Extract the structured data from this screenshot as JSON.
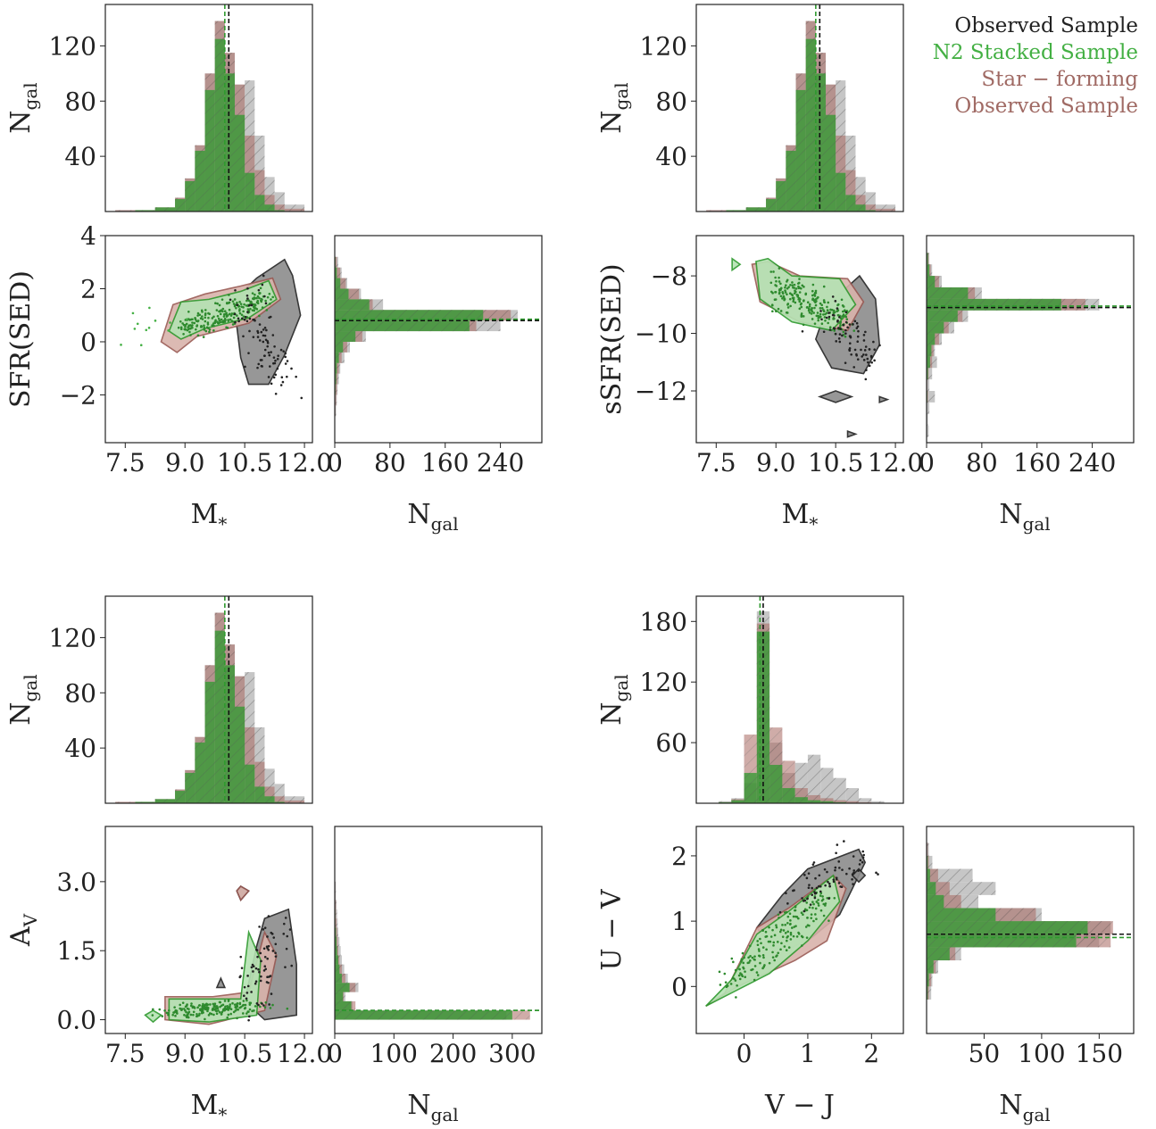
{
  "legend": [
    {
      "label": "Observed Sample",
      "color": "#222222"
    },
    {
      "label": "N2 Stacked Sample",
      "color": "#44b044"
    },
    {
      "label": "Star − forming",
      "color": "#a06a64"
    },
    {
      "label": "Observed Sample",
      "color": "#a06a64"
    }
  ],
  "colors": {
    "observed": "#9a9a9a",
    "stacked": "#2e9a2e",
    "starforming": "#a86860",
    "green_fill": "#b5e3b3",
    "pink_fill": "#d9b3ab",
    "gray_fill": "#8c8c8c"
  },
  "chart_data": [
    {
      "type": "histogram",
      "panel": "top-left-marginal",
      "ylabel": "N",
      "ylabel_sub": "gal",
      "xlim": [
        7.0,
        12.2
      ],
      "ylim": [
        0,
        150
      ],
      "yticks": [
        "40",
        "80",
        "120"
      ],
      "ytick_values": [
        40,
        80,
        120
      ],
      "bins": [
        7.25,
        7.75,
        8.25,
        8.75,
        9.0,
        9.25,
        9.5,
        9.75,
        10.0,
        10.25,
        10.5,
        10.75,
        11.0,
        11.25,
        11.5
      ],
      "observed": [
        1,
        1,
        3,
        10,
        24,
        48,
        100,
        138,
        115,
        92,
        95,
        55,
        25,
        14,
        5
      ],
      "starforming": [
        1,
        1,
        3,
        10,
        24,
        48,
        100,
        138,
        115,
        92,
        55,
        30,
        12,
        5,
        2
      ],
      "stacked": [
        0,
        1,
        3,
        9,
        22,
        44,
        88,
        125,
        100,
        70,
        28,
        12,
        5,
        1,
        0
      ],
      "median_observed": 10.1,
      "median_stacked": 10.0
    },
    {
      "type": "scatter",
      "panel": "SFR vs mass",
      "xlabel": "M",
      "xlabel_sub": "*",
      "ylabel": "SFR(SED)",
      "xlim": [
        7.0,
        12.2
      ],
      "ylim": [
        -3.8,
        4
      ],
      "xticks": [
        "7.5",
        "9.0",
        "10.5",
        "12.0"
      ],
      "xtick_values": [
        7.5,
        9.0,
        10.5,
        12.0
      ],
      "yticks": [
        "−2",
        "0",
        "2",
        "4"
      ],
      "ytick_values": [
        -2,
        0,
        2,
        4
      ]
    },
    {
      "type": "histogram",
      "orientation": "horizontal",
      "panel": "SFR marginal",
      "xlabel": "N",
      "xlabel_sub": "gal",
      "xlim": [
        0,
        300
      ],
      "ylim": [
        -3.8,
        4
      ],
      "xticks": [
        "0",
        "80",
        "160",
        "240"
      ],
      "xtick_values": [
        0,
        80,
        160,
        240
      ],
      "bins": [
        -2.6,
        -2.2,
        -1.8,
        -1.4,
        -1.0,
        -0.6,
        -0.2,
        0.2,
        0.6,
        1.0,
        1.4,
        1.8,
        2.2,
        2.6,
        3.0
      ],
      "observed": [
        2,
        3,
        4,
        6,
        8,
        14,
        22,
        45,
        240,
        265,
        70,
        38,
        18,
        10,
        5
      ],
      "starforming": [
        1,
        2,
        3,
        4,
        6,
        10,
        18,
        40,
        205,
        255,
        55,
        35,
        16,
        8,
        3
      ],
      "stacked": [
        0,
        0,
        1,
        2,
        3,
        6,
        12,
        30,
        195,
        215,
        50,
        20,
        8,
        3,
        1
      ],
      "median_observed": 0.8,
      "median_stacked": 0.85
    },
    {
      "type": "histogram",
      "panel": "top-right-marginal",
      "ylabel": "N",
      "ylabel_sub": "gal",
      "xlim": [
        7.0,
        12.2
      ],
      "ylim": [
        0,
        150
      ],
      "yticks": [
        "40",
        "80",
        "120"
      ],
      "ytick_values": [
        40,
        80,
        120
      ],
      "bins": [
        7.25,
        7.75,
        8.25,
        8.75,
        9.0,
        9.25,
        9.5,
        9.75,
        10.0,
        10.25,
        10.5,
        10.75,
        11.0,
        11.25,
        11.5
      ],
      "observed": [
        1,
        1,
        3,
        10,
        24,
        48,
        100,
        138,
        115,
        92,
        95,
        55,
        25,
        14,
        5
      ],
      "starforming": [
        1,
        1,
        3,
        10,
        24,
        48,
        100,
        138,
        115,
        92,
        55,
        30,
        12,
        5,
        2
      ],
      "stacked": [
        0,
        1,
        3,
        9,
        22,
        44,
        88,
        125,
        100,
        70,
        28,
        12,
        5,
        1,
        0
      ],
      "median_observed": 10.1,
      "median_stacked": 10.0
    },
    {
      "type": "scatter",
      "panel": "sSFR vs mass",
      "xlabel": "M",
      "xlabel_sub": "*",
      "ylabel": "sSFR(SED)",
      "xlim": [
        7.0,
        12.2
      ],
      "ylim": [
        -13.8,
        -6.6
      ],
      "xticks": [
        "7.5",
        "9.0",
        "10.5",
        "12.0"
      ],
      "xtick_values": [
        7.5,
        9.0,
        10.5,
        12.0
      ],
      "yticks": [
        "−12",
        "−10",
        "−8"
      ],
      "ytick_values": [
        -12,
        -10,
        -8
      ]
    },
    {
      "type": "histogram",
      "orientation": "horizontal",
      "panel": "sSFR marginal",
      "xlabel": "N",
      "xlabel_sub": "gal",
      "xlim": [
        0,
        300
      ],
      "ylim": [
        -13.8,
        -6.6
      ],
      "xticks": [
        "0",
        "80",
        "160",
        "240"
      ],
      "xtick_values": [
        0,
        80,
        160,
        240
      ],
      "bins": [
        -13.4,
        -13.0,
        -12.6,
        -12.2,
        -11.8,
        -11.4,
        -11.0,
        -10.6,
        -10.2,
        -9.8,
        -9.4,
        -9.0,
        -8.6,
        -8.2,
        -7.8,
        -7.4
      ],
      "observed": [
        3,
        2,
        4,
        12,
        4,
        8,
        15,
        12,
        22,
        40,
        60,
        250,
        80,
        22,
        8,
        4
      ],
      "starforming": [
        0,
        0,
        0,
        2,
        1,
        3,
        8,
        10,
        18,
        32,
        52,
        230,
        70,
        18,
        6,
        3
      ],
      "stacked": [
        0,
        0,
        0,
        1,
        0,
        2,
        5,
        7,
        12,
        25,
        45,
        195,
        60,
        12,
        4,
        2
      ],
      "median_observed": -9.1,
      "median_stacked": -9.05
    },
    {
      "type": "histogram",
      "panel": "bottom-left-marginal",
      "ylabel": "N",
      "ylabel_sub": "gal",
      "xlim": [
        7.0,
        12.2
      ],
      "ylim": [
        0,
        150
      ],
      "yticks": [
        "40",
        "80",
        "120"
      ],
      "ytick_values": [
        40,
        80,
        120
      ],
      "bins": [
        7.25,
        7.75,
        8.25,
        8.75,
        9.0,
        9.25,
        9.5,
        9.75,
        10.0,
        10.25,
        10.5,
        10.75,
        11.0,
        11.25,
        11.5
      ],
      "observed": [
        1,
        1,
        3,
        10,
        24,
        48,
        100,
        138,
        115,
        92,
        95,
        55,
        25,
        14,
        5
      ],
      "starforming": [
        1,
        1,
        3,
        10,
        24,
        48,
        100,
        138,
        115,
        92,
        55,
        30,
        12,
        5,
        2
      ],
      "stacked": [
        0,
        1,
        3,
        9,
        22,
        44,
        88,
        125,
        100,
        70,
        28,
        12,
        5,
        1,
        0
      ],
      "median_observed": 10.1,
      "median_stacked": 10.0
    },
    {
      "type": "scatter",
      "panel": "Av vs mass",
      "xlabel": "M",
      "xlabel_sub": "*",
      "ylabel": "A",
      "ylabel_sub": "V",
      "xlim": [
        7.0,
        12.2
      ],
      "ylim": [
        -0.3,
        4.2
      ],
      "xticks": [
        "7.5",
        "9.0",
        "10.5",
        "12.0"
      ],
      "xtick_values": [
        7.5,
        9.0,
        10.5,
        12.0
      ],
      "yticks": [
        "0.0",
        "1.5",
        "3.0"
      ],
      "ytick_values": [
        0.0,
        1.5,
        3.0
      ]
    },
    {
      "type": "histogram",
      "orientation": "horizontal",
      "panel": "Av marginal",
      "xlabel": "N",
      "xlabel_sub": "gal",
      "xlim": [
        0,
        350
      ],
      "ylim": [
        -0.3,
        4.2
      ],
      "xticks": [
        "0",
        "100",
        "200",
        "300"
      ],
      "xtick_values": [
        0,
        100,
        200,
        300
      ],
      "bins": [
        0.1,
        0.3,
        0.5,
        0.7,
        0.9,
        1.1,
        1.3,
        1.5,
        1.7,
        1.9,
        2.1,
        2.3,
        2.5,
        2.7,
        2.9
      ],
      "observed": [
        290,
        30,
        18,
        40,
        22,
        16,
        12,
        10,
        8,
        6,
        5,
        4,
        3,
        2,
        2
      ],
      "starforming": [
        330,
        35,
        15,
        35,
        18,
        12,
        8,
        6,
        5,
        4,
        3,
        2,
        2,
        1,
        1
      ],
      "stacked": [
        300,
        28,
        14,
        25,
        12,
        8,
        6,
        4,
        3,
        2,
        1,
        1,
        0,
        0,
        0
      ],
      "median_observed": 0.2,
      "median_stacked": 0.2
    },
    {
      "type": "histogram",
      "panel": "bottom-right-marginal",
      "ylabel": "N",
      "ylabel_sub": "gal",
      "xlim": [
        -0.75,
        2.5
      ],
      "ylim": [
        0,
        205
      ],
      "yticks": [
        "60",
        "120",
        "180"
      ],
      "ytick_values": [
        60,
        120,
        180
      ],
      "bins": [
        -0.4,
        -0.2,
        0.0,
        0.2,
        0.4,
        0.6,
        0.8,
        1.0,
        1.2,
        1.4,
        1.6,
        1.8,
        2.0
      ],
      "observed": [
        2,
        5,
        20,
        190,
        60,
        30,
        40,
        48,
        35,
        25,
        15,
        5,
        2
      ],
      "starforming": [
        1,
        4,
        68,
        178,
        75,
        42,
        15,
        8,
        5,
        3,
        2,
        1,
        0
      ],
      "stacked": [
        1,
        3,
        30,
        170,
        38,
        15,
        6,
        3,
        2,
        1,
        0,
        0,
        0
      ],
      "median_observed": 0.3,
      "median_stacked": 0.25
    },
    {
      "type": "scatter",
      "panel": "UVJ",
      "xlabel": "V − J",
      "ylabel": "U − V",
      "xlim": [
        -0.75,
        2.5
      ],
      "ylim": [
        -0.72,
        2.45
      ],
      "xticks": [
        "0",
        "1",
        "2"
      ],
      "xtick_values": [
        0,
        1,
        2
      ],
      "yticks": [
        "0",
        "1",
        "2"
      ],
      "ytick_values": [
        0,
        1,
        2
      ]
    },
    {
      "type": "histogram",
      "orientation": "horizontal",
      "panel": "U-V marginal",
      "xlabel": "N",
      "xlabel_sub": "gal",
      "xlim": [
        0,
        180
      ],
      "ylim": [
        -0.72,
        2.45
      ],
      "xticks": [
        "50",
        "100",
        "150"
      ],
      "xtick_values": [
        50,
        100,
        150
      ],
      "bins": [
        -0.1,
        0.1,
        0.3,
        0.5,
        0.7,
        0.9,
        1.1,
        1.3,
        1.5,
        1.7,
        1.9,
        2.1
      ],
      "observed": [
        4,
        5,
        10,
        30,
        150,
        160,
        100,
        45,
        60,
        40,
        5,
        2
      ],
      "starforming": [
        2,
        4,
        8,
        25,
        160,
        162,
        95,
        30,
        20,
        10,
        2,
        1
      ],
      "stacked": [
        1,
        2,
        6,
        20,
        130,
        140,
        60,
        15,
        8,
        3,
        1,
        0
      ],
      "median_observed": 0.8,
      "median_stacked": 0.75
    }
  ]
}
